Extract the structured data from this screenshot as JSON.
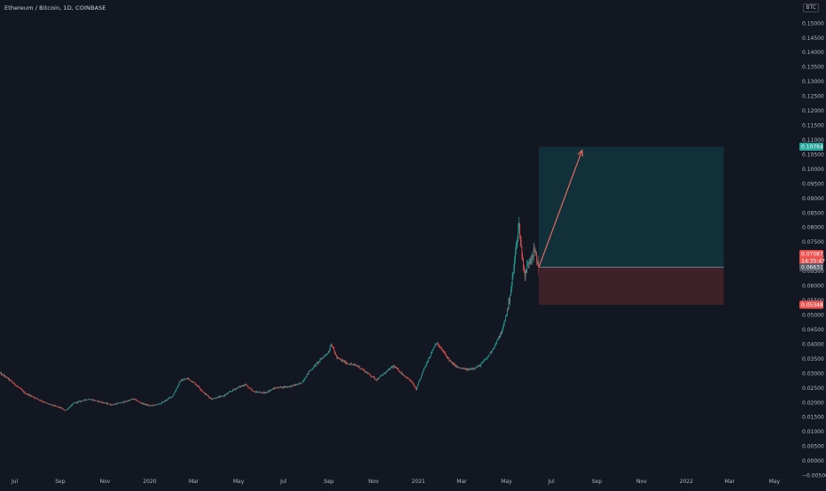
{
  "header": {
    "title": "Ethereum / Bitcoin, 1D, COINBASE",
    "currency": "BTC"
  },
  "colors": {
    "background": "#131722",
    "up": "#26a69a",
    "down": "#ef5350",
    "axis_text": "#b2b5be",
    "target_zone": "#12303a",
    "stop_zone": "#3e2129",
    "arrow": "#e06a5d"
  },
  "chart_data": {
    "type": "candlestick",
    "title": "Ethereum / Bitcoin, 1D, COINBASE",
    "xlabel": "",
    "ylabel": "",
    "ylim": [
      -0.0055,
      0.1555
    ],
    "xlim": [
      "2019-06-11",
      "2022-05-29"
    ],
    "grid": false,
    "y_ticks": [
      "0.15000",
      "0.14500",
      "0.14000",
      "0.13500",
      "0.13000",
      "0.12500",
      "0.12000",
      "0.11500",
      "0.11000",
      "0.10500",
      "0.10000",
      "0.09500",
      "0.09000",
      "0.08500",
      "0.08000",
      "0.07500",
      "0.07000",
      "0.06500",
      "0.06000",
      "0.05500",
      "0.05000",
      "0.04500",
      "0.04000",
      "0.03500",
      "0.03000",
      "0.02500",
      "0.02000",
      "0.01500",
      "0.01000",
      "0.00500",
      "0.00000",
      "−0.00500"
    ],
    "x_ticks": [
      {
        "label": "Jul",
        "date": "2019-07-01"
      },
      {
        "label": "Sep",
        "date": "2019-09-01"
      },
      {
        "label": "Nov",
        "date": "2019-11-01"
      },
      {
        "label": "2020",
        "date": "2020-01-01"
      },
      {
        "label": "Mar",
        "date": "2020-03-01"
      },
      {
        "label": "May",
        "date": "2020-05-01"
      },
      {
        "label": "Jul",
        "date": "2020-07-01"
      },
      {
        "label": "Sep",
        "date": "2020-09-01"
      },
      {
        "label": "Nov",
        "date": "2020-11-01"
      },
      {
        "label": "2021",
        "date": "2021-01-01"
      },
      {
        "label": "Mar",
        "date": "2021-03-01"
      },
      {
        "label": "May",
        "date": "2021-05-01"
      },
      {
        "label": "Jul",
        "date": "2021-07-01"
      },
      {
        "label": "Sep",
        "date": "2021-09-01"
      },
      {
        "label": "Nov",
        "date": "2021-11-01"
      },
      {
        "label": "2022",
        "date": "2022-01-01"
      },
      {
        "label": "Mar",
        "date": "2022-03-01"
      },
      {
        "label": "May",
        "date": "2022-05-01"
      }
    ],
    "price_path": [
      [
        "2019-06-11",
        0.03
      ],
      [
        "2019-06-20",
        0.0285
      ],
      [
        "2019-07-01",
        0.0262
      ],
      [
        "2019-07-15",
        0.0232
      ],
      [
        "2019-08-01",
        0.0212
      ],
      [
        "2019-08-15",
        0.0195
      ],
      [
        "2019-09-01",
        0.0182
      ],
      [
        "2019-09-08",
        0.0172
      ],
      [
        "2019-09-20",
        0.0198
      ],
      [
        "2019-10-10",
        0.0212
      ],
      [
        "2019-10-25",
        0.0202
      ],
      [
        "2019-11-10",
        0.0192
      ],
      [
        "2019-11-25",
        0.02
      ],
      [
        "2019-12-10",
        0.0212
      ],
      [
        "2019-12-20",
        0.0198
      ],
      [
        "2020-01-01",
        0.0188
      ],
      [
        "2020-01-15",
        0.0195
      ],
      [
        "2020-02-01",
        0.0222
      ],
      [
        "2020-02-12",
        0.0275
      ],
      [
        "2020-02-22",
        0.0282
      ],
      [
        "2020-03-05",
        0.026
      ],
      [
        "2020-03-15",
        0.0232
      ],
      [
        "2020-03-25",
        0.0212
      ],
      [
        "2020-04-10",
        0.0222
      ],
      [
        "2020-04-25",
        0.0245
      ],
      [
        "2020-05-10",
        0.0262
      ],
      [
        "2020-05-20",
        0.0238
      ],
      [
        "2020-06-05",
        0.0232
      ],
      [
        "2020-06-20",
        0.025
      ],
      [
        "2020-07-10",
        0.0255
      ],
      [
        "2020-07-25",
        0.0265
      ],
      [
        "2020-08-05",
        0.0305
      ],
      [
        "2020-08-20",
        0.0345
      ],
      [
        "2020-09-01",
        0.0375
      ],
      [
        "2020-09-04",
        0.0402
      ],
      [
        "2020-09-12",
        0.0352
      ],
      [
        "2020-09-25",
        0.0335
      ],
      [
        "2020-10-10",
        0.0325
      ],
      [
        "2020-10-25",
        0.0298
      ],
      [
        "2020-11-05",
        0.0278
      ],
      [
        "2020-11-18",
        0.0305
      ],
      [
        "2020-11-28",
        0.0325
      ],
      [
        "2020-12-10",
        0.0298
      ],
      [
        "2020-12-22",
        0.0272
      ],
      [
        "2020-12-29",
        0.0245
      ],
      [
        "2021-01-08",
        0.0312
      ],
      [
        "2021-01-18",
        0.0368
      ],
      [
        "2021-01-25",
        0.0405
      ],
      [
        "2021-02-05",
        0.037
      ],
      [
        "2021-02-15",
        0.0335
      ],
      [
        "2021-02-25",
        0.0318
      ],
      [
        "2021-03-10",
        0.0312
      ],
      [
        "2021-03-25",
        0.0325
      ],
      [
        "2021-04-05",
        0.0355
      ],
      [
        "2021-04-15",
        0.0395
      ],
      [
        "2021-04-25",
        0.0445
      ],
      [
        "2021-05-03",
        0.0525
      ],
      [
        "2021-05-10",
        0.064
      ],
      [
        "2021-05-15",
        0.076
      ],
      [
        "2021-05-18",
        0.0805
      ],
      [
        "2021-05-22",
        0.0705
      ],
      [
        "2021-05-26",
        0.0635
      ],
      [
        "2021-06-01",
        0.069
      ],
      [
        "2021-06-08",
        0.072
      ],
      [
        "2021-06-14",
        0.0664
      ]
    ],
    "annotations": {
      "current_price": {
        "label": "0.07087",
        "countdown": "14:35:47"
      },
      "entry": {
        "price": 0.06631,
        "label": "0.06631"
      },
      "target": {
        "price": 0.10764,
        "label": "0.10764"
      },
      "stop": {
        "price": 0.05348,
        "label": "0.05348"
      },
      "position_start": "2021-06-14",
      "position_end": "2022-02-21",
      "arrow_to": "2021-08-12"
    }
  }
}
